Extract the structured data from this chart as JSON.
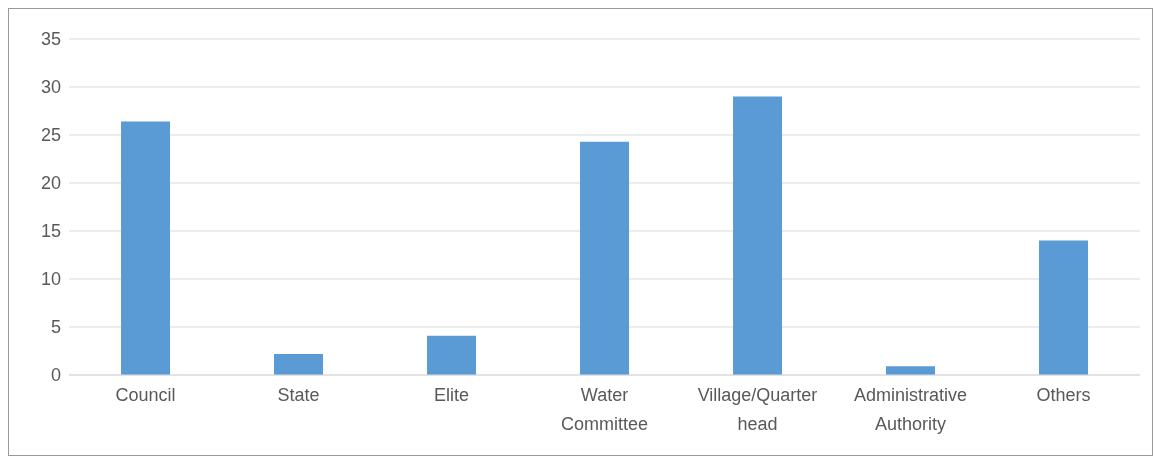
{
  "chart_data": {
    "type": "bar",
    "categories": [
      "Council",
      "State",
      "Elite",
      "Water Committee",
      "Village/Quarter head",
      "Administrative Authority",
      "Others"
    ],
    "values": [
      26.4,
      2.2,
      4.1,
      24.3,
      29.0,
      0.9,
      14.0
    ],
    "color": "#5b9bd5",
    "ylim": [
      0,
      35
    ],
    "yticks": [
      0,
      5,
      10,
      15,
      20,
      25,
      30,
      35
    ],
    "grid": "y"
  }
}
